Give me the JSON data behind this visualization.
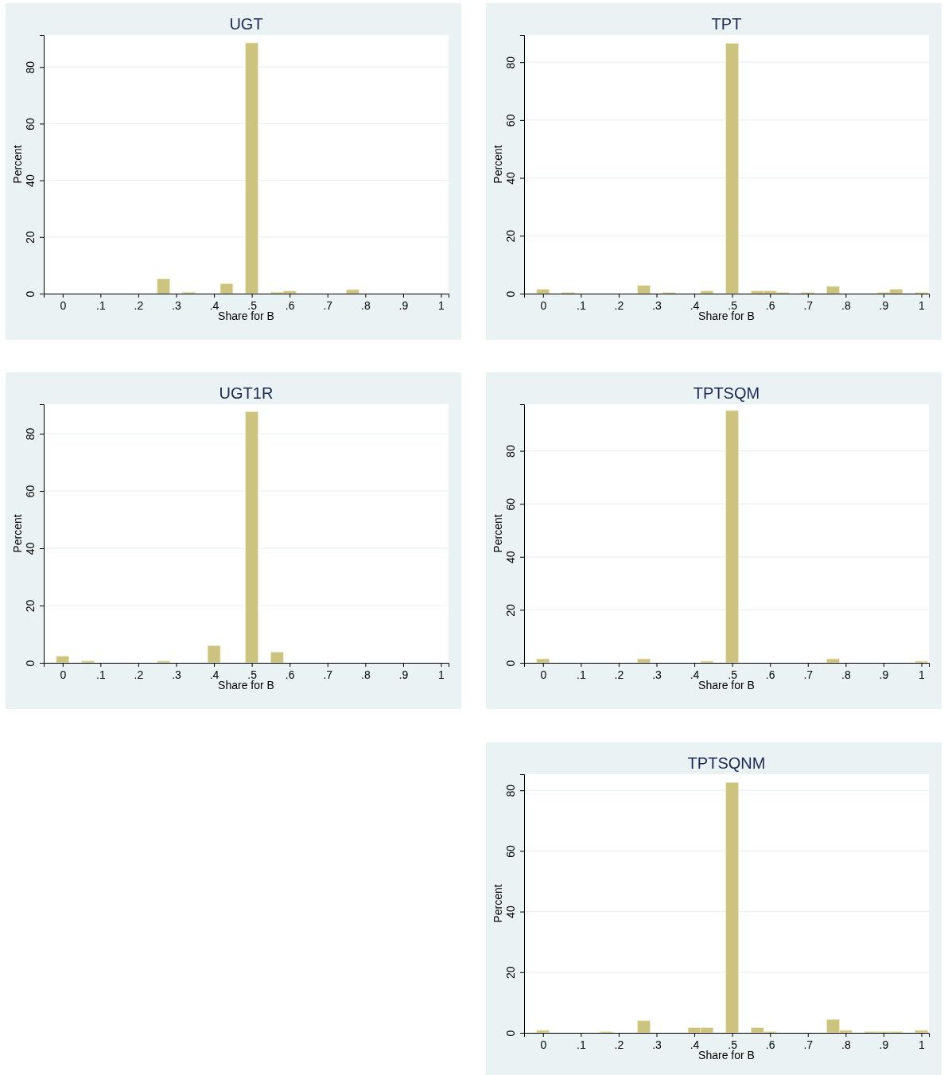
{
  "chart_data": [
    {
      "type": "histogram",
      "title": "UGT",
      "xlabel": "Share for B",
      "ylabel": "Percent",
      "color": "#ccc47e",
      "grid": "y",
      "xlim": [
        -0.05,
        1.02
      ],
      "ylim": [
        0,
        91.3
      ],
      "yticks": [
        0,
        20,
        40,
        60,
        80
      ],
      "xticks": [
        {
          "value": 0,
          "label": "0"
        },
        {
          "value": 0.1,
          "label": ".1"
        },
        {
          "value": 0.2,
          "label": ".2"
        },
        {
          "value": 0.3,
          "label": ".3"
        },
        {
          "value": 0.4,
          "label": ".4"
        },
        {
          "value": 0.5,
          "label": ".5"
        },
        {
          "value": 0.6,
          "label": ".6"
        },
        {
          "value": 0.7,
          "label": ".7"
        },
        {
          "value": 0.8,
          "label": ".8"
        },
        {
          "value": 0.9,
          "label": ".9"
        },
        {
          "value": 1,
          "label": "1"
        }
      ],
      "bins": [
        -0.0167,
        0.0167,
        0.05,
        0.0833,
        0.1167,
        0.15,
        0.1833,
        0.2167,
        0.25,
        0.2833,
        0.3167,
        0.35,
        0.3833,
        0.4167,
        0.45,
        0.4833,
        0.5167,
        0.55,
        0.5833,
        0.6167,
        0.65,
        0.6833,
        0.7167,
        0.75,
        0.7833,
        0.8167,
        0.85,
        0.8833,
        0.9167,
        0.95,
        0.9833,
        1.0167
      ],
      "values": [
        0,
        0,
        0,
        0,
        0,
        0,
        0,
        0,
        5.2,
        0,
        0.5,
        0,
        0,
        3.5,
        0,
        88.5,
        0,
        0.5,
        0.9,
        0,
        0,
        0,
        0,
        1.4,
        0,
        0,
        0,
        0,
        0,
        0,
        0
      ]
    },
    {
      "type": "histogram",
      "title": "TPT",
      "xlabel": "Share for B",
      "ylabel": "Percent",
      "color": "#ccc47e",
      "grid": "y",
      "xlim": [
        -0.05,
        1.02
      ],
      "ylim": [
        0,
        89.4
      ],
      "yticks": [
        0,
        20,
        40,
        60,
        80
      ],
      "xticks": [
        {
          "value": 0,
          "label": "0"
        },
        {
          "value": 0.1,
          "label": ".1"
        },
        {
          "value": 0.2,
          "label": ".2"
        },
        {
          "value": 0.3,
          "label": ".3"
        },
        {
          "value": 0.4,
          "label": ".4"
        },
        {
          "value": 0.5,
          "label": ".5"
        },
        {
          "value": 0.6,
          "label": ".6"
        },
        {
          "value": 0.7,
          "label": ".7"
        },
        {
          "value": 0.8,
          "label": ".8"
        },
        {
          "value": 0.9,
          "label": ".9"
        },
        {
          "value": 1,
          "label": "1"
        }
      ],
      "bins": [
        -0.0167,
        0.0167,
        0.05,
        0.0833,
        0.1167,
        0.15,
        0.1833,
        0.2167,
        0.25,
        0.2833,
        0.3167,
        0.35,
        0.3833,
        0.4167,
        0.45,
        0.4833,
        0.5167,
        0.55,
        0.5833,
        0.6167,
        0.65,
        0.6833,
        0.7167,
        0.75,
        0.7833,
        0.8167,
        0.85,
        0.8833,
        0.9167,
        0.95,
        0.9833,
        1.0167
      ],
      "values": [
        1.5,
        0,
        0.4,
        0,
        0,
        0,
        0,
        0,
        2.8,
        0,
        0.4,
        0,
        0,
        0.9,
        0,
        86.5,
        0,
        0.9,
        0.9,
        0.4,
        0,
        0.4,
        0,
        2.5,
        0,
        0,
        0,
        0.4,
        1.5,
        0,
        0.4
      ]
    },
    {
      "type": "histogram",
      "title": "UGT1R",
      "xlabel": "Share for B",
      "ylabel": "Percent",
      "color": "#ccc47e",
      "grid": "y",
      "xlim": [
        -0.05,
        1.02
      ],
      "ylim": [
        0,
        90.3
      ],
      "yticks": [
        0,
        20,
        40,
        60,
        80
      ],
      "xticks": [
        {
          "value": 0,
          "label": "0"
        },
        {
          "value": 0.1,
          "label": ".1"
        },
        {
          "value": 0.2,
          "label": ".2"
        },
        {
          "value": 0.3,
          "label": ".3"
        },
        {
          "value": 0.4,
          "label": ".4"
        },
        {
          "value": 0.5,
          "label": ".5"
        },
        {
          "value": 0.6,
          "label": ".6"
        },
        {
          "value": 0.7,
          "label": ".7"
        },
        {
          "value": 0.8,
          "label": ".8"
        },
        {
          "value": 0.9,
          "label": ".9"
        },
        {
          "value": 1,
          "label": "1"
        }
      ],
      "bins": [
        -0.0167,
        0.0167,
        0.05,
        0.0833,
        0.1167,
        0.15,
        0.1833,
        0.2167,
        0.25,
        0.2833,
        0.3167,
        0.35,
        0.3833,
        0.4167,
        0.45,
        0.4833,
        0.5167,
        0.55,
        0.5833,
        0.6167,
        0.65,
        0.6833,
        0.7167,
        0.75,
        0.7833,
        0.8167,
        0.85,
        0.8833,
        0.9167,
        0.95,
        0.9833,
        1.0167
      ],
      "values": [
        2.3,
        0,
        0.6,
        0,
        0,
        0,
        0,
        0,
        0.6,
        0,
        0,
        0,
        6.0,
        0,
        0,
        87.7,
        0,
        3.7,
        0,
        0,
        0,
        0,
        0,
        0,
        0,
        0,
        0,
        0,
        0,
        0,
        0
      ]
    },
    {
      "type": "histogram",
      "title": "TPTSQM",
      "xlabel": "Share for B",
      "ylabel": "Percent",
      "color": "#ccc47e",
      "grid": "y",
      "xlim": [
        -0.05,
        1.02
      ],
      "ylim": [
        0,
        97.6
      ],
      "yticks": [
        0,
        20,
        40,
        60,
        80
      ],
      "xticks": [
        {
          "value": 0,
          "label": "0"
        },
        {
          "value": 0.1,
          "label": ".1"
        },
        {
          "value": 0.2,
          "label": ".2"
        },
        {
          "value": 0.3,
          "label": ".3"
        },
        {
          "value": 0.4,
          "label": ".4"
        },
        {
          "value": 0.5,
          "label": ".5"
        },
        {
          "value": 0.6,
          "label": ".6"
        },
        {
          "value": 0.7,
          "label": ".7"
        },
        {
          "value": 0.8,
          "label": ".8"
        },
        {
          "value": 0.9,
          "label": ".9"
        },
        {
          "value": 1,
          "label": "1"
        }
      ],
      "bins": [
        -0.0167,
        0.0167,
        0.05,
        0.0833,
        0.1167,
        0.15,
        0.1833,
        0.2167,
        0.25,
        0.2833,
        0.3167,
        0.35,
        0.3833,
        0.4167,
        0.45,
        0.4833,
        0.5167,
        0.55,
        0.5833,
        0.6167,
        0.65,
        0.6833,
        0.7167,
        0.75,
        0.7833,
        0.8167,
        0.85,
        0.8833,
        0.9167,
        0.95,
        0.9833,
        1.0167
      ],
      "values": [
        1.5,
        0,
        0,
        0,
        0,
        0,
        0,
        0,
        1.5,
        0,
        0,
        0,
        0,
        0.6,
        0,
        95.2,
        0,
        0,
        0,
        0,
        0,
        0,
        0,
        1.5,
        0,
        0,
        0,
        0,
        0,
        0,
        0.6
      ]
    },
    {
      "type": "histogram",
      "title": "TPTSQNM",
      "xlabel": "Share for B",
      "ylabel": "Percent",
      "color": "#ccc47e",
      "grid": "y",
      "xlim": [
        -0.05,
        1.02
      ],
      "ylim": [
        0,
        85.3
      ],
      "yticks": [
        0,
        20,
        40,
        60,
        80
      ],
      "xticks": [
        {
          "value": 0,
          "label": "0"
        },
        {
          "value": 0.1,
          "label": ".1"
        },
        {
          "value": 0.2,
          "label": ".2"
        },
        {
          "value": 0.3,
          "label": ".3"
        },
        {
          "value": 0.4,
          "label": ".4"
        },
        {
          "value": 0.5,
          "label": ".5"
        },
        {
          "value": 0.6,
          "label": ".6"
        },
        {
          "value": 0.7,
          "label": ".7"
        },
        {
          "value": 0.8,
          "label": ".8"
        },
        {
          "value": 0.9,
          "label": ".9"
        },
        {
          "value": 1,
          "label": "1"
        }
      ],
      "bins": [
        -0.0167,
        0.0167,
        0.05,
        0.0833,
        0.1167,
        0.15,
        0.1833,
        0.2167,
        0.25,
        0.2833,
        0.3167,
        0.35,
        0.3833,
        0.4167,
        0.45,
        0.4833,
        0.5167,
        0.55,
        0.5833,
        0.6167,
        0.65,
        0.6833,
        0.7167,
        0.75,
        0.7833,
        0.8167,
        0.85,
        0.8833,
        0.9167,
        0.95,
        0.9833,
        1.0167
      ],
      "values": [
        0.8,
        0,
        0,
        0,
        0,
        0.4,
        0,
        0,
        4.0,
        0,
        0,
        0,
        1.7,
        1.7,
        0,
        82.6,
        0,
        1.7,
        0.4,
        0,
        0,
        0,
        0,
        4.4,
        0.8,
        0,
        0.4,
        0.4,
        0.4,
        0,
        0.8
      ]
    }
  ]
}
